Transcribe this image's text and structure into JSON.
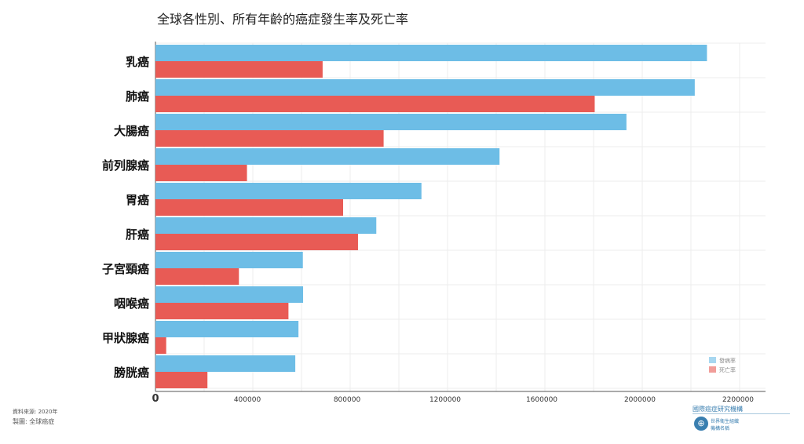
{
  "chart_data": {
    "type": "bar",
    "orientation": "horizontal",
    "title": "全球各性別、所有年齡的癌症發生率及死亡率",
    "categories": [
      "乳癌",
      "肺癌",
      "大腸癌",
      "前列腺癌",
      "胃癌",
      "肝癌",
      "子宮頸癌",
      "咽喉癌",
      "甲狀腺癌",
      "膀胱癌"
    ],
    "series": [
      {
        "name": "發病率",
        "color": "#6dbde6",
        "values": [
          2260000,
          2210000,
          1930000,
          1410000,
          1090000,
          905000,
          604000,
          605000,
          586000,
          573000
        ]
      },
      {
        "name": "死亡率",
        "color": "#e85b55",
        "values": [
          685000,
          1800000,
          935000,
          375000,
          769000,
          830000,
          342000,
          545000,
          44000,
          213000
        ]
      }
    ],
    "x_ticks": [
      "0",
      "400000",
      "800000",
      "1200000",
      "1600000",
      "2000000",
      "2200000"
    ],
    "xlim": [
      0,
      2500000
    ],
    "grid": true,
    "legend_position": "bottom-right"
  },
  "footer": {
    "source": "資料來源: 2020年",
    "chart_by": "製圖: 全球癌症"
  },
  "branding": {
    "iarc": "國際癌症研究機構",
    "who_line1": "世界衛生組織",
    "who_line2": "機構名稱"
  }
}
